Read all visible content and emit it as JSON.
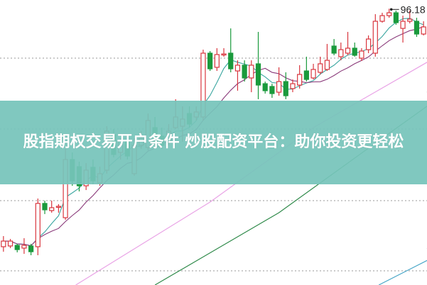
{
  "banner": {
    "title": "股指期权交易开户条件 炒股配资平台：助你投资更轻松"
  },
  "chart_data": {
    "type": "candlestick",
    "ylim": [
      70.2,
      97
    ],
    "grid": "horizontal-dotted",
    "max_label": "96.18",
    "colors": {
      "up": "#d9363e",
      "down": "#1a9a3c",
      "ma5": "#3aa6a0",
      "ma10": "#8a3a7a",
      "ma20": "#e9a3e6",
      "ma60": "#2f8a4a",
      "ma120": "#4aa7c8",
      "grid": "#9a9a9a",
      "banner": "#76c4ba"
    },
    "candles": [
      [
        73.8,
        74.33,
        74.8,
        73.33
      ],
      [
        73.87,
        74.33,
        74.53,
        73.67
      ],
      [
        73.93,
        73.53,
        74.07,
        73.27
      ],
      [
        73.67,
        73.93,
        74.6,
        73.13
      ],
      [
        73.87,
        73.33,
        74.07,
        73
      ],
      [
        73.8,
        77.87,
        78.33,
        73
      ],
      [
        77.87,
        77.27,
        78.13,
        76.87
      ],
      [
        77.2,
        77.47,
        78.13,
        77
      ],
      [
        77.53,
        77.6,
        77.8,
        77
      ],
      [
        76.53,
        82,
        83,
        76.33
      ],
      [
        82,
        80,
        82.67,
        79.53
      ],
      [
        81.33,
        79.53,
        81.8,
        79
      ],
      [
        79.53,
        81,
        81.67,
        79.13
      ],
      [
        81.27,
        80,
        82,
        79.67
      ],
      [
        79.8,
        80.67,
        81.33,
        79.53
      ],
      [
        81,
        84.67,
        85.13,
        80.67
      ],
      [
        84.33,
        82.47,
        84.87,
        82.2
      ],
      [
        82.67,
        83.8,
        84,
        82
      ],
      [
        83.67,
        82.33,
        84,
        82
      ],
      [
        80.67,
        83.33,
        84,
        80.47
      ],
      [
        83.33,
        84,
        84.67,
        83
      ],
      [
        83.13,
        85.67,
        86.33,
        82.87
      ],
      [
        85,
        83.67,
        86,
        83.33
      ],
      [
        84.2,
        83.33,
        85,
        83
      ],
      [
        83.67,
        84.67,
        85.33,
        83.33
      ],
      [
        85,
        86,
        87.67,
        84.87
      ],
      [
        85.13,
        85.8,
        87,
        83.67
      ],
      [
        86.33,
        85.33,
        87,
        85
      ],
      [
        86,
        86.47,
        87,
        85.67
      ],
      [
        86,
        92,
        92.33,
        85.67
      ],
      [
        92,
        90.53,
        92.2,
        90.33
      ],
      [
        90.67,
        91.87,
        92.47,
        90.33
      ],
      [
        91.87,
        91.93,
        92.47,
        91.67
      ],
      [
        92,
        90.53,
        94.33,
        90.2
      ],
      [
        90.33,
        90.87,
        91.33,
        88.47
      ],
      [
        90.87,
        89.67,
        91.33,
        89.33
      ],
      [
        89.67,
        90.87,
        91.33,
        88.33
      ],
      [
        91,
        89,
        94,
        87.67
      ],
      [
        89.13,
        88.47,
        89.33,
        88.2
      ],
      [
        88.87,
        88.2,
        89.13,
        87.8
      ],
      [
        88.33,
        89.33,
        90.67,
        88
      ],
      [
        89.33,
        88,
        90.2,
        87.67
      ],
      [
        88.67,
        89.13,
        89.53,
        88.33
      ],
      [
        89,
        90,
        90.87,
        88.67
      ],
      [
        90.33,
        89.53,
        91.67,
        89.33
      ],
      [
        89.67,
        90.47,
        91,
        89.53
      ],
      [
        90.2,
        91,
        91.67,
        90
      ],
      [
        90.47,
        91.33,
        92.87,
        90.33
      ],
      [
        92.67,
        92,
        93.33,
        91.8
      ],
      [
        91.67,
        92.33,
        93,
        91.33
      ],
      [
        92,
        92.47,
        94,
        91.8
      ],
      [
        92.47,
        91.8,
        93,
        91.67
      ],
      [
        91.53,
        92.2,
        92.47,
        91.27
      ],
      [
        92.33,
        93.33,
        93.67,
        92
      ],
      [
        92,
        95,
        95.67,
        91.67
      ],
      [
        95,
        95.53,
        95.8,
        94.87
      ],
      [
        95.53,
        95.8,
        96.18,
        95.33
      ],
      [
        95.8,
        94.87,
        96,
        94.67
      ],
      [
        94.33,
        95,
        95.53,
        93
      ],
      [
        95,
        95.2,
        96,
        94.8
      ],
      [
        95,
        93.8,
        95.33,
        93.53
      ],
      [
        93.8,
        94.47,
        95,
        93.67
      ]
    ],
    "long_ma": [
      {
        "key": "ma20",
        "points": [
          [
            10.5,
            70.2
          ],
          [
            30,
            78
          ],
          [
            45,
            85
          ],
          [
            63,
            91.7
          ]
        ]
      },
      {
        "key": "ma60",
        "points": [
          [
            22,
            70.2
          ],
          [
            40,
            77
          ],
          [
            55,
            84
          ],
          [
            63,
            87.7
          ]
        ]
      },
      {
        "key": "ma120",
        "points": [
          [
            54.5,
            70.2
          ],
          [
            63,
            73
          ]
        ]
      }
    ]
  }
}
